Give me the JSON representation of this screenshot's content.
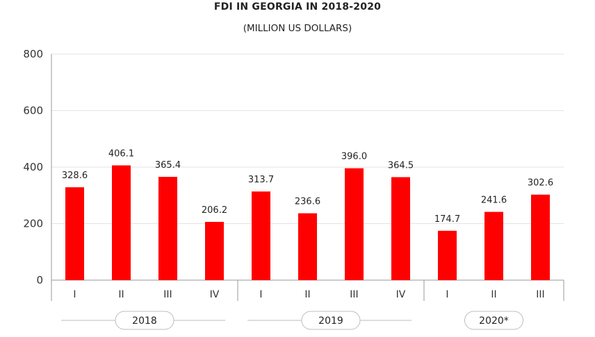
{
  "chart_data": {
    "type": "bar",
    "title": "FDI IN GEORGIA IN 2018-2020",
    "subtitle": "(MILLION US DOLLARS)",
    "categories": [
      "I",
      "II",
      "III",
      "IV",
      "I",
      "II",
      "III",
      "IV",
      "I",
      "II",
      "III"
    ],
    "groups": [
      {
        "label": "2018",
        "count": 4
      },
      {
        "label": "2019",
        "count": 4
      },
      {
        "label": "2020*",
        "count": 3
      }
    ],
    "values": [
      328.6,
      406.1,
      365.4,
      206.2,
      313.7,
      236.6,
      396.0,
      364.5,
      174.7,
      241.6,
      302.6
    ],
    "value_labels": [
      "328.6",
      "406.1",
      "365.4",
      "206.2",
      "313.7",
      "236.6",
      "396.0",
      "364.5",
      "174.7",
      "241.6",
      "302.6"
    ],
    "ylim": [
      0,
      800
    ],
    "yticks": [
      0,
      200,
      400,
      600,
      800
    ],
    "grid": true,
    "bar_color": "#ff0000",
    "xlabel": "",
    "ylabel": ""
  }
}
